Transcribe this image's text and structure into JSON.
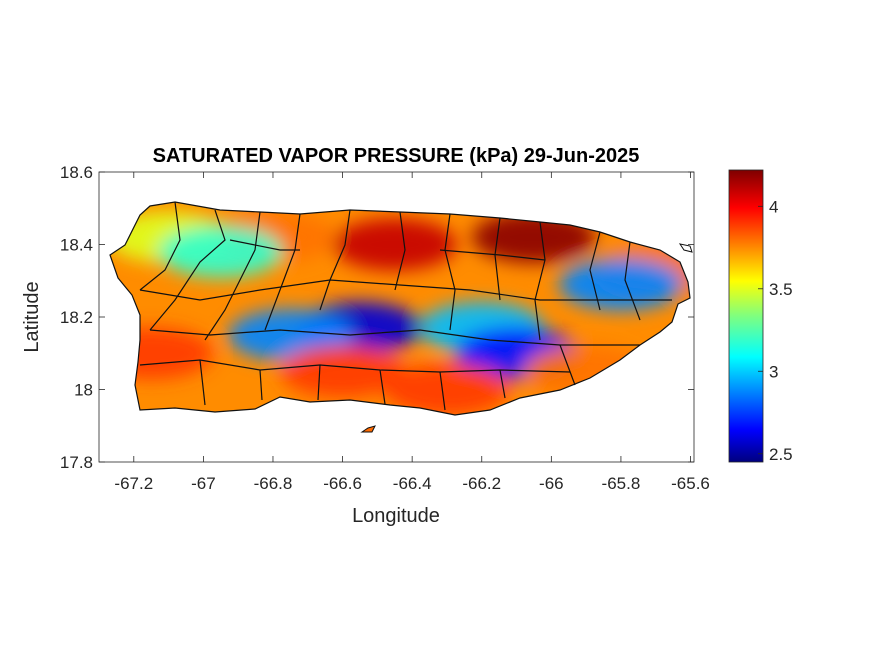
{
  "chart_data": {
    "type": "heatmap",
    "title": "SATURATED VAPOR PRESSURE (kPa) 29-Jun-2025",
    "xlabel": "Longitude",
    "ylabel": "Latitude",
    "xlim": [
      -67.3,
      -65.59
    ],
    "ylim": [
      17.8,
      18.6
    ],
    "xticks": [
      "-67.2",
      "-67",
      "-66.8",
      "-66.6",
      "-66.4",
      "-66.2",
      "-66",
      "-65.8",
      "-65.6"
    ],
    "xtick_values": [
      -67.2,
      -67.0,
      -66.8,
      -66.6,
      -66.4,
      -66.2,
      -66.0,
      -65.8,
      -65.6
    ],
    "yticks": [
      "17.8",
      "18",
      "18.2",
      "18.4",
      "18.6"
    ],
    "ytick_values": [
      17.8,
      18.0,
      18.2,
      18.4,
      18.6
    ],
    "colorbar": {
      "colormap": "jet",
      "range": [
        2.45,
        4.22
      ],
      "ticks": [
        "2.5",
        "3",
        "3.5",
        "4"
      ],
      "tick_values": [
        2.5,
        3.0,
        3.5,
        4.0
      ]
    },
    "regions": [
      {
        "lon": -66.45,
        "lat": 18.4,
        "value": 4.1
      },
      {
        "lon": -66.05,
        "lat": 18.42,
        "value": 4.2
      },
      {
        "lon": -66.8,
        "lat": 18.42,
        "value": 3.8
      },
      {
        "lon": -67.1,
        "lat": 18.42,
        "value": 3.5
      },
      {
        "lon": -66.95,
        "lat": 18.38,
        "value": 3.2
      },
      {
        "lon": -65.7,
        "lat": 18.33,
        "value": 3.8
      },
      {
        "lon": -65.8,
        "lat": 18.29,
        "value": 2.9
      },
      {
        "lon": -66.55,
        "lat": 18.17,
        "value": 2.6
      },
      {
        "lon": -66.75,
        "lat": 18.15,
        "value": 2.9
      },
      {
        "lon": -66.2,
        "lat": 18.17,
        "value": 3.0
      },
      {
        "lon": -66.1,
        "lat": 18.1,
        "value": 2.7
      },
      {
        "lon": -67.15,
        "lat": 18.1,
        "value": 3.9
      },
      {
        "lon": -66.6,
        "lat": 18.05,
        "value": 3.9
      },
      {
        "lon": -66.3,
        "lat": 18.0,
        "value": 3.9
      },
      {
        "lon": -65.9,
        "lat": 18.05,
        "value": 3.8
      }
    ]
  }
}
